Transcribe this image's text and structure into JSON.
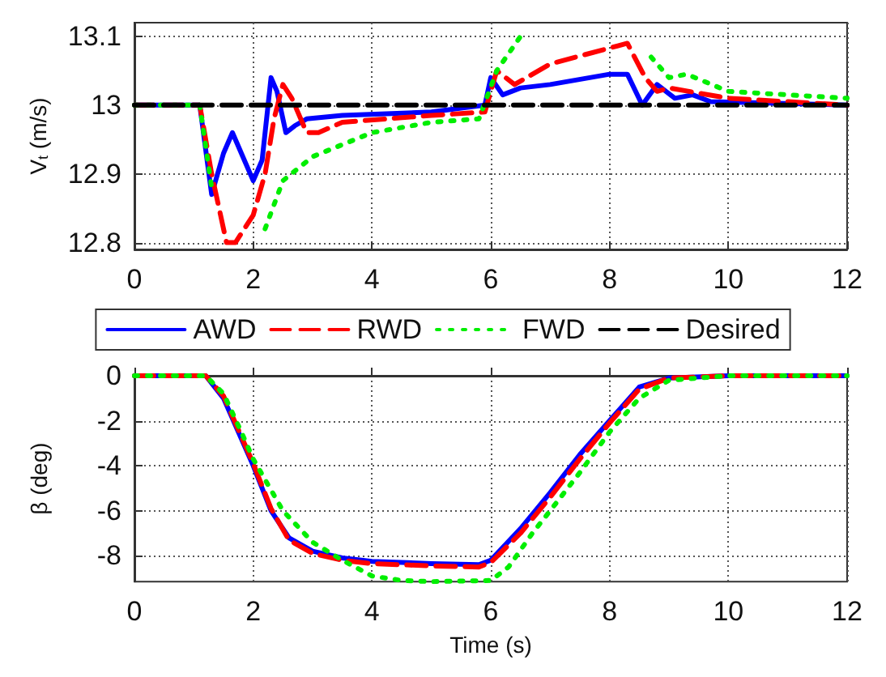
{
  "chart_data": [
    {
      "type": "line",
      "ylabel": "V$_{t}$ (m/s)",
      "xlim": [
        0,
        12
      ],
      "xticks": [
        0,
        2,
        4,
        6,
        8,
        10,
        12
      ],
      "ylim": [
        12.79,
        13.12
      ],
      "yticks": [
        12.8,
        12.9,
        13,
        13.1
      ],
      "grid": true,
      "legend": "bottom",
      "marker": "none",
      "series": [
        {
          "name": "AWD",
          "color": "#0000ff",
          "line_style": "solid",
          "x": [
            0,
            1.1,
            1.3,
            1.5,
            1.65,
            1.8,
            2.0,
            2.15,
            2.3,
            2.4,
            2.55,
            2.7,
            2.9,
            3.5,
            5,
            5.9,
            6.0,
            6.2,
            6.5,
            7,
            8,
            8.3,
            8.55,
            8.8,
            9.1,
            9.4,
            9.7,
            12
          ],
          "values": [
            13,
            13,
            12.87,
            12.93,
            12.96,
            12.93,
            12.89,
            12.92,
            13.04,
            13.02,
            12.96,
            12.97,
            12.98,
            12.985,
            12.99,
            13.0,
            13.04,
            13.015,
            13.025,
            13.03,
            13.045,
            13.045,
            13.0,
            13.03,
            13.01,
            13.015,
            13.005,
            13.0
          ]
        },
        {
          "name": "RWD",
          "color": "#ff0000",
          "line_style": "dashed",
          "x": [
            0,
            1.1,
            1.3,
            1.55,
            1.7,
            2.0,
            2.2,
            2.35,
            2.5,
            2.65,
            2.9,
            3.1,
            3.5,
            5,
            5.9,
            6.1,
            6.4,
            7,
            8.3,
            8.6,
            8.8,
            9,
            10,
            12
          ],
          "values": [
            13,
            13,
            12.9,
            12.8,
            12.8,
            12.84,
            12.9,
            12.98,
            13.03,
            13.01,
            12.96,
            12.96,
            12.975,
            12.985,
            12.99,
            13.05,
            13.03,
            13.06,
            13.09,
            13.04,
            13.02,
            13.025,
            13.01,
            13.0
          ]
        },
        {
          "name": "FWD",
          "color": "#00ee00",
          "line_style": "dotted",
          "x": [
            0,
            1.1,
            1.3,
            1.55,
            1.8,
            2.0,
            2.2,
            2.5,
            3,
            4,
            5,
            5.8,
            6.1,
            6.5,
            6.8,
            8.5,
            8.7,
            9,
            9.3,
            10,
            12
          ],
          "values": [
            13,
            13,
            12.88,
            null,
            null,
            null,
            12.82,
            12.89,
            12.925,
            12.96,
            12.975,
            12.98,
            13.05,
            13.1,
            null,
            null,
            13.07,
            13.04,
            13.045,
            13.02,
            13.01
          ]
        },
        {
          "name": "Desired",
          "color": "#000000",
          "line_style": "dashed",
          "x": [
            0,
            12
          ],
          "values": [
            13,
            13
          ]
        }
      ]
    },
    {
      "type": "line",
      "xlabel": "Time (s)",
      "ylabel": "β (deg)",
      "xlim": [
        0,
        12
      ],
      "xticks": [
        0,
        2,
        4,
        6,
        8,
        10,
        12
      ],
      "ylim": [
        -9.15,
        0
      ],
      "yticks": [
        -8,
        -6,
        -4,
        -2,
        0
      ],
      "grid": true,
      "marker": "none",
      "series": [
        {
          "color": "#0000ff",
          "line_style": "solid",
          "x": [
            0,
            1.2,
            1.5,
            1.8,
            2,
            2.3,
            2.6,
            3,
            3.5,
            4,
            5,
            5.8,
            6,
            6.5,
            7,
            7.5,
            8,
            8.5,
            9,
            10,
            12
          ],
          "values": [
            0,
            0,
            -1,
            -2.8,
            -4,
            -6,
            -7.2,
            -7.8,
            -8.1,
            -8.25,
            -8.35,
            -8.4,
            -8.2,
            -6.8,
            -5.2,
            -3.5,
            -2,
            -0.5,
            -0.1,
            0,
            0
          ]
        },
        {
          "color": "#ff0000",
          "line_style": "dashed",
          "x": [
            0,
            1.2,
            1.5,
            1.8,
            2,
            2.3,
            2.6,
            3,
            3.5,
            4,
            5,
            5.8,
            6,
            6.5,
            7,
            7.5,
            8,
            8.5,
            9,
            10,
            12
          ],
          "values": [
            0,
            0,
            -0.9,
            -2.7,
            -3.9,
            -5.9,
            -7.3,
            -7.9,
            -8.2,
            -8.35,
            -8.45,
            -8.5,
            -8.3,
            -7,
            -5.4,
            -3.7,
            -2.1,
            -0.6,
            -0.1,
            0,
            0
          ]
        },
        {
          "color": "#00ee00",
          "line_style": "dotted",
          "x": [
            0,
            1.2,
            1.5,
            1.8,
            2,
            2.5,
            3,
            3.5,
            4,
            4.5,
            5,
            6,
            6.3,
            6.7,
            7,
            7.5,
            8,
            8.5,
            9,
            10,
            12
          ],
          "values": [
            0,
            0,
            -0.8,
            -2.5,
            -3.7,
            -6,
            -7.4,
            -8.2,
            -8.9,
            -9.1,
            -9.15,
            -9.1,
            -8.5,
            -7,
            -6,
            -4.3,
            -2.5,
            -1,
            -0.2,
            0,
            0
          ]
        }
      ]
    }
  ]
}
